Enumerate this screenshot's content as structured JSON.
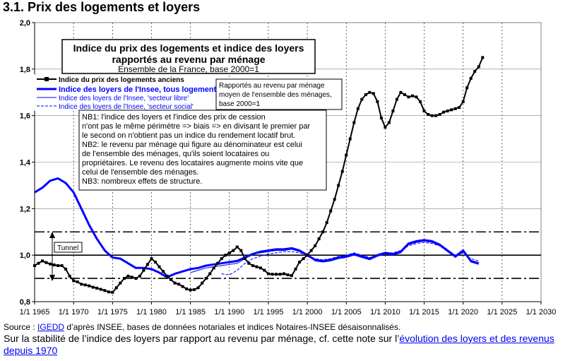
{
  "heading": "3.1. Prix des logements et loyers",
  "source": {
    "prefix": "Source : ",
    "link": "IGEDD",
    "suffix": " d’après INSEE, bases de données notariales et indices Notaires-INSEE désaisonnalisés."
  },
  "note": {
    "prefix": "Sur la stabilité de l’indice des loyers par rapport au revenu par ménage, cf. cette note sur l’",
    "link": "évolution des loyers et des revenus depuis 1970"
  },
  "chart_data": {
    "type": "line",
    "title_lines": [
      "Indice du prix des logements et indice des loyers",
      "rapportés au revenu par ménage"
    ],
    "subtitle": "Ensemble de la France, base 2000=1",
    "xlim": [
      1965,
      2030
    ],
    "ylim": [
      0.8,
      2.0
    ],
    "x_ticks": [
      "1/1 1965",
      "1/1 1970",
      "1/1 1975",
      "1/1 1980",
      "1/1 1985",
      "1/1 1990",
      "1/1 1995",
      "1/1 2000",
      "1/1 2005",
      "1/1 2010",
      "1/1 2015",
      "1/1 2020",
      "1/1 2025",
      "1/1 2030"
    ],
    "y_ticks": [
      "0,8",
      "1,0",
      "1,2",
      "1,4",
      "1,6",
      "1,8",
      "2,0"
    ],
    "reference_lines": [
      1.1,
      1.0,
      0.9
    ],
    "tunnel_label": "Tunnel",
    "denominator_note": [
      "Rapportés au revenu  par ménage",
      "moyen de l'ensemble des ménages,",
      "base 2000=1"
    ],
    "nb_note": [
      "NB1: l'indice des loyers et l'indice des prix de cession",
      "n'ont pas le même périmètre => biais => en divisant le premier par",
      "le second on n'obtient pas un indice du rendement locatif brut.",
      "NB2: le revenu par ménage qui figure au dénominateur est celui",
      "de l'ensemble des ménages, qu'ils soient locataires ou",
      "propriétaires.  Le revenu des locataires augmente moins vite que",
      "celui de l'ensemble des ménages.",
      "NB3: nombreux effets de structure."
    ],
    "series": [
      {
        "name": "Indice du prix des logements anciens",
        "color": "#000000",
        "style": "line-markers",
        "points": [
          [
            1965.0,
            0.955
          ],
          [
            1965.5,
            0.965
          ],
          [
            1966.0,
            0.975
          ],
          [
            1966.5,
            0.968
          ],
          [
            1967.0,
            0.962
          ],
          [
            1967.5,
            0.958
          ],
          [
            1968.0,
            0.955
          ],
          [
            1968.5,
            0.955
          ],
          [
            1969.0,
            0.94
          ],
          [
            1969.5,
            0.91
          ],
          [
            1970.0,
            0.89
          ],
          [
            1970.5,
            0.885
          ],
          [
            1971.0,
            0.875
          ],
          [
            1971.5,
            0.872
          ],
          [
            1972.0,
            0.868
          ],
          [
            1972.5,
            0.862
          ],
          [
            1973.0,
            0.858
          ],
          [
            1973.5,
            0.853
          ],
          [
            1974.0,
            0.848
          ],
          [
            1974.5,
            0.842
          ],
          [
            1975.0,
            0.84
          ],
          [
            1975.5,
            0.86
          ],
          [
            1976.0,
            0.88
          ],
          [
            1976.5,
            0.9
          ],
          [
            1977.0,
            0.91
          ],
          [
            1977.5,
            0.905
          ],
          [
            1978.0,
            0.9
          ],
          [
            1978.5,
            0.91
          ],
          [
            1979.0,
            0.935
          ],
          [
            1979.5,
            0.96
          ],
          [
            1980.0,
            0.985
          ],
          [
            1980.5,
            0.97
          ],
          [
            1981.0,
            0.95
          ],
          [
            1981.5,
            0.93
          ],
          [
            1982.0,
            0.91
          ],
          [
            1982.5,
            0.895
          ],
          [
            1983.0,
            0.88
          ],
          [
            1983.5,
            0.875
          ],
          [
            1984.0,
            0.865
          ],
          [
            1984.5,
            0.855
          ],
          [
            1985.0,
            0.85
          ],
          [
            1985.5,
            0.852
          ],
          [
            1986.0,
            0.86
          ],
          [
            1986.5,
            0.88
          ],
          [
            1987.0,
            0.9
          ],
          [
            1987.5,
            0.92
          ],
          [
            1988.0,
            0.945
          ],
          [
            1988.5,
            0.965
          ],
          [
            1989.0,
            0.985
          ],
          [
            1989.5,
            1.0
          ],
          [
            1990.0,
            1.01
          ],
          [
            1990.5,
            1.02
          ],
          [
            1991.0,
            1.035
          ],
          [
            1991.5,
            1.02
          ],
          [
            1992.0,
            0.985
          ],
          [
            1992.5,
            0.965
          ],
          [
            1993.0,
            0.955
          ],
          [
            1993.5,
            0.95
          ],
          [
            1994.0,
            0.945
          ],
          [
            1994.5,
            0.935
          ],
          [
            1995.0,
            0.92
          ],
          [
            1995.5,
            0.918
          ],
          [
            1996.0,
            0.918
          ],
          [
            1996.5,
            0.918
          ],
          [
            1997.0,
            0.92
          ],
          [
            1997.5,
            0.915
          ],
          [
            1998.0,
            0.912
          ],
          [
            1998.5,
            0.94
          ],
          [
            1999.0,
            0.97
          ],
          [
            1999.5,
            0.985
          ],
          [
            2000.0,
            1.0
          ],
          [
            2000.5,
            1.02
          ],
          [
            2001.0,
            1.04
          ],
          [
            2001.5,
            1.07
          ],
          [
            2002.0,
            1.1
          ],
          [
            2002.5,
            1.14
          ],
          [
            2003.0,
            1.19
          ],
          [
            2003.5,
            1.24
          ],
          [
            2004.0,
            1.3
          ],
          [
            2004.5,
            1.36
          ],
          [
            2005.0,
            1.43
          ],
          [
            2005.5,
            1.5
          ],
          [
            2006.0,
            1.57
          ],
          [
            2006.5,
            1.63
          ],
          [
            2007.0,
            1.67
          ],
          [
            2007.5,
            1.69
          ],
          [
            2008.0,
            1.7
          ],
          [
            2008.5,
            1.695
          ],
          [
            2009.0,
            1.66
          ],
          [
            2009.5,
            1.59
          ],
          [
            2010.0,
            1.55
          ],
          [
            2010.5,
            1.57
          ],
          [
            2011.0,
            1.62
          ],
          [
            2011.5,
            1.67
          ],
          [
            2012.0,
            1.7
          ],
          [
            2012.5,
            1.69
          ],
          [
            2013.0,
            1.68
          ],
          [
            2013.5,
            1.685
          ],
          [
            2014.0,
            1.68
          ],
          [
            2014.5,
            1.66
          ],
          [
            2015.0,
            1.62
          ],
          [
            2015.5,
            1.605
          ],
          [
            2016.0,
            1.6
          ],
          [
            2016.5,
            1.6
          ],
          [
            2017.0,
            1.605
          ],
          [
            2017.5,
            1.615
          ],
          [
            2018.0,
            1.62
          ],
          [
            2018.5,
            1.625
          ],
          [
            2019.0,
            1.63
          ],
          [
            2019.5,
            1.635
          ],
          [
            2020.0,
            1.66
          ],
          [
            2020.5,
            1.72
          ],
          [
            2021.0,
            1.76
          ],
          [
            2021.5,
            1.79
          ],
          [
            2022.0,
            1.81
          ],
          [
            2022.5,
            1.85
          ]
        ]
      },
      {
        "name": "Indice des loyers de l'Insee, tous logements",
        "color": "#0000ff",
        "style": "thick",
        "points": [
          [
            1965.0,
            1.27
          ],
          [
            1966.0,
            1.29
          ],
          [
            1967.0,
            1.32
          ],
          [
            1968.0,
            1.33
          ],
          [
            1969.0,
            1.31
          ],
          [
            1970.0,
            1.27
          ],
          [
            1971.0,
            1.2
          ],
          [
            1972.0,
            1.13
          ],
          [
            1973.0,
            1.07
          ],
          [
            1974.0,
            1.02
          ],
          [
            1975.0,
            0.99
          ],
          [
            1976.0,
            0.985
          ],
          [
            1977.0,
            0.965
          ],
          [
            1978.0,
            0.945
          ],
          [
            1979.0,
            0.945
          ],
          [
            1980.0,
            0.94
          ],
          [
            1981.0,
            0.925
          ],
          [
            1982.0,
            0.905
          ],
          [
            1983.0,
            0.92
          ],
          [
            1984.0,
            0.93
          ],
          [
            1985.0,
            0.94
          ],
          [
            1986.0,
            0.945
          ],
          [
            1987.0,
            0.955
          ],
          [
            1988.0,
            0.96
          ],
          [
            1989.0,
            0.965
          ],
          [
            1990.0,
            0.97
          ],
          [
            1991.0,
            0.975
          ],
          [
            1992.0,
            0.99
          ],
          [
            1993.0,
            1.005
          ],
          [
            1994.0,
            1.015
          ],
          [
            1995.0,
            1.02
          ],
          [
            1996.0,
            1.025
          ],
          [
            1997.0,
            1.025
          ],
          [
            1998.0,
            1.03
          ],
          [
            1999.0,
            1.02
          ],
          [
            2000.0,
            1.0
          ],
          [
            2001.0,
            0.98
          ],
          [
            2002.0,
            0.975
          ],
          [
            2003.0,
            0.98
          ],
          [
            2004.0,
            0.99
          ],
          [
            2005.0,
            0.995
          ],
          [
            2006.0,
            1.005
          ],
          [
            2007.0,
            0.995
          ],
          [
            2008.0,
            0.985
          ],
          [
            2009.0,
            1.0
          ],
          [
            2010.0,
            1.01
          ],
          [
            2011.0,
            1.005
          ],
          [
            2012.0,
            1.015
          ],
          [
            2013.0,
            1.05
          ],
          [
            2014.0,
            1.06
          ],
          [
            2015.0,
            1.065
          ],
          [
            2016.0,
            1.06
          ],
          [
            2017.0,
            1.045
          ],
          [
            2018.0,
            1.02
          ],
          [
            2019.0,
            0.995
          ],
          [
            2020.0,
            1.02
          ],
          [
            2021.0,
            0.975
          ],
          [
            2022.0,
            0.965
          ]
        ]
      },
      {
        "name": "Indice des loyers de l'Insee, 'secteur libre'",
        "color": "#0000ff",
        "style": "thin",
        "points": [
          [
            1985.0,
            0.925
          ],
          [
            1986.0,
            0.935
          ],
          [
            1987.0,
            0.945
          ],
          [
            1988.0,
            0.95
          ],
          [
            1989.0,
            0.955
          ],
          [
            1990.0,
            0.96
          ],
          [
            1991.0,
            0.965
          ],
          [
            1992.0,
            0.985
          ],
          [
            1993.0,
            1.005
          ],
          [
            1994.0,
            1.01
          ],
          [
            1995.0,
            1.015
          ],
          [
            1996.0,
            1.02
          ],
          [
            1997.0,
            1.02
          ],
          [
            1998.0,
            1.025
          ],
          [
            1999.0,
            1.015
          ],
          [
            2000.0,
            1.0
          ],
          [
            2001.0,
            0.975
          ],
          [
            2002.0,
            0.97
          ],
          [
            2003.0,
            0.975
          ],
          [
            2004.0,
            0.985
          ],
          [
            2005.0,
            0.99
          ],
          [
            2006.0,
            1.0
          ],
          [
            2007.0,
            0.99
          ],
          [
            2008.0,
            0.98
          ],
          [
            2009.0,
            0.995
          ],
          [
            2010.0,
            1.005
          ],
          [
            2011.0,
            1.0
          ],
          [
            2012.0,
            1.01
          ],
          [
            2013.0,
            1.045
          ],
          [
            2014.0,
            1.055
          ],
          [
            2015.0,
            1.06
          ],
          [
            2016.0,
            1.055
          ],
          [
            2017.0,
            1.04
          ],
          [
            2018.0,
            1.015
          ],
          [
            2019.0,
            0.99
          ],
          [
            2020.0,
            1.015
          ],
          [
            2021.0,
            0.97
          ],
          [
            2022.0,
            0.96
          ]
        ]
      },
      {
        "name": "Indice des loyers de l'Insee, 'secteur social'",
        "color": "#0000ff",
        "style": "dashed",
        "points": [
          [
            1989.0,
            0.92
          ],
          [
            1990.0,
            0.915
          ],
          [
            1991.0,
            0.935
          ],
          [
            1992.0,
            0.965
          ],
          [
            1993.0,
            0.985
          ],
          [
            1994.0,
            0.995
          ],
          [
            1995.0,
            1.005
          ],
          [
            1996.0,
            1.01
          ],
          [
            1997.0,
            1.015
          ],
          [
            1998.0,
            1.015
          ],
          [
            1999.0,
            1.01
          ],
          [
            2000.0,
            1.0
          ],
          [
            2001.0,
            0.985
          ],
          [
            2002.0,
            0.98
          ],
          [
            2003.0,
            0.985
          ],
          [
            2004.0,
            0.995
          ],
          [
            2005.0,
            1.0
          ],
          [
            2006.0,
            1.01
          ],
          [
            2007.0,
            1.0
          ],
          [
            2008.0,
            0.99
          ],
          [
            2009.0,
            1.0
          ],
          [
            2010.0,
            1.01
          ],
          [
            2011.0,
            1.01
          ],
          [
            2012.0,
            1.02
          ],
          [
            2013.0,
            1.04
          ],
          [
            2014.0,
            1.05
          ],
          [
            2015.0,
            1.055
          ],
          [
            2016.0,
            1.05
          ],
          [
            2017.0,
            1.04
          ],
          [
            2018.0,
            1.02
          ],
          [
            2019.0,
            1.0
          ],
          [
            2020.0,
            1.01
          ],
          [
            2021.0,
            0.985
          ],
          [
            2022.0,
            0.975
          ]
        ]
      }
    ]
  }
}
